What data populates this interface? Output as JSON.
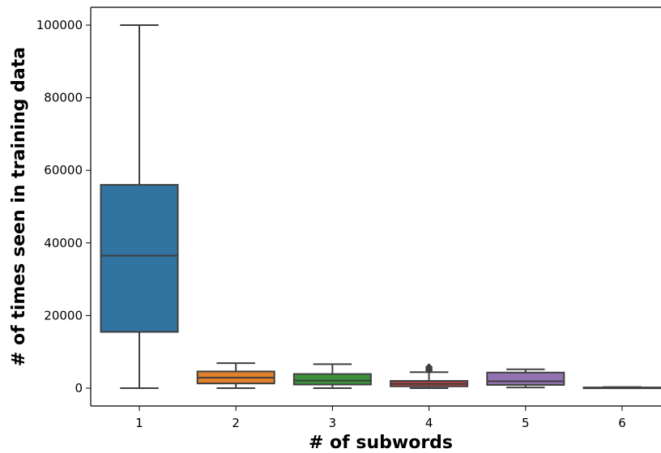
{
  "chart_data": {
    "type": "box",
    "title": "",
    "xlabel": "# of subwords",
    "ylabel": "# of times seen in training data",
    "categories": [
      "1",
      "2",
      "3",
      "4",
      "5",
      "6"
    ],
    "ylim": [
      -5000,
      105000
    ],
    "yticks": [
      0,
      20000,
      40000,
      60000,
      80000,
      100000
    ],
    "ytick_labels": [
      "0",
      "20000",
      "40000",
      "60000",
      "80000",
      "100000"
    ],
    "grid": false,
    "boxes": [
      {
        "category": "1",
        "min": 0,
        "q1": 15500,
        "median": 36500,
        "q3": 56000,
        "max": 100000,
        "color": "#3274a1",
        "outliers": []
      },
      {
        "category": "2",
        "min": 0,
        "q1": 1300,
        "median": 2900,
        "q3": 4600,
        "max": 6900,
        "color": "#e1812c",
        "outliers": []
      },
      {
        "category": "3",
        "min": 0,
        "q1": 1000,
        "median": 2100,
        "q3": 3900,
        "max": 6600,
        "color": "#3a923a",
        "outliers": []
      },
      {
        "category": "4",
        "min": 0,
        "q1": 500,
        "median": 1200,
        "q3": 2000,
        "max": 4400,
        "color": "#c03d3e",
        "outliers": [
          4900,
          5300,
          5800
        ]
      },
      {
        "category": "5",
        "min": 200,
        "q1": 900,
        "median": 1900,
        "q3": 4300,
        "max": 5200,
        "color": "#9372b2",
        "outliers": []
      },
      {
        "category": "6",
        "min": 0,
        "q1": 50,
        "median": 100,
        "q3": 200,
        "max": 300,
        "color": "#845b53",
        "outliers": []
      }
    ]
  }
}
